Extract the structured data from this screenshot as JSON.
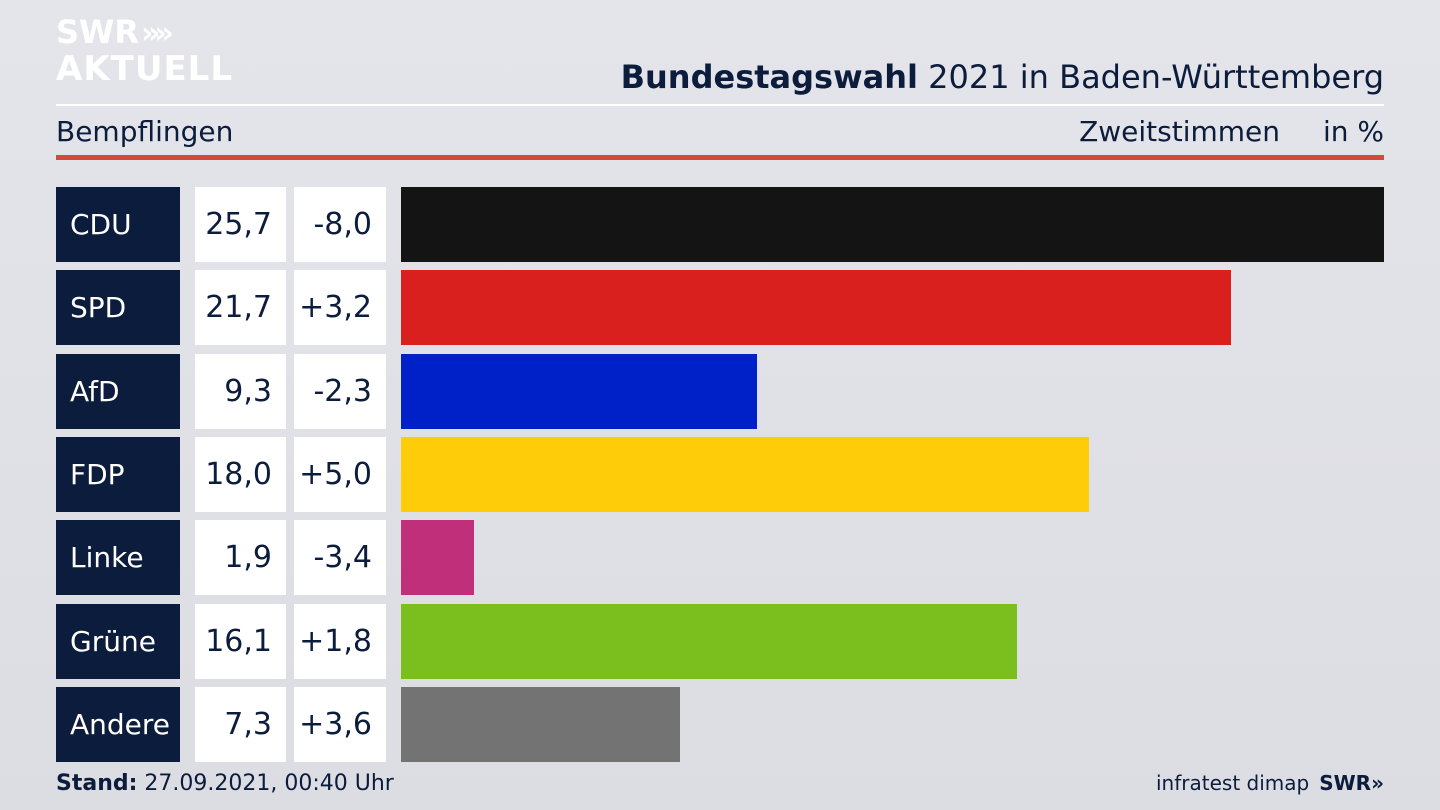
{
  "header": {
    "logo_line1": "SWR",
    "logo_chevrons": "»",
    "logo_line2": "AKTUELL",
    "title_bold": "Bundestagswahl",
    "title_rest": " 2021 in Baden-Württemberg",
    "region": "Bempflingen",
    "metric": "Zweitstimmen",
    "unit": "in %"
  },
  "footer": {
    "stand_label": "Stand:",
    "stand_value": " 27.09.2021, 00:40 Uhr",
    "source": "infratest dimap",
    "source_logo": "SWR»"
  },
  "chart_data": {
    "type": "bar",
    "orientation": "horizontal",
    "categories": [
      "CDU",
      "SPD",
      "AfD",
      "FDP",
      "Linke",
      "Grüne",
      "Andere"
    ],
    "values": [
      25.7,
      21.7,
      9.3,
      18.0,
      1.9,
      16.1,
      7.3
    ],
    "value_labels": [
      "25,7",
      "21,7",
      "9,3",
      "18,0",
      "1,9",
      "16,1",
      "7,3"
    ],
    "changes": [
      "-8,0",
      "+3,2",
      "-2,3",
      "+5,0",
      "-3,4",
      "+1,8",
      "+3,6"
    ],
    "colors": [
      "#141414",
      "#d9201f",
      "#0021c7",
      "#ffcc0a",
      "#c0307a",
      "#7abf1e",
      "#737373"
    ],
    "title": "Bundestagswahl 2021 in Baden-Württemberg",
    "xlim": [
      0,
      25.7
    ],
    "grid": false
  }
}
